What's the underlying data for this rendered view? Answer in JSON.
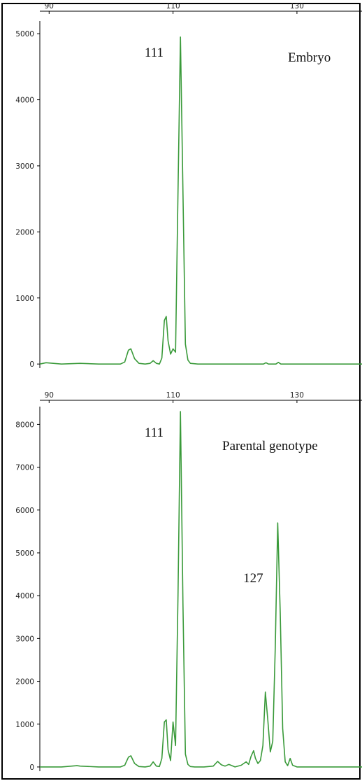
{
  "chart_data": [
    {
      "type": "line",
      "title": "",
      "annotation": "Embryo",
      "peak_labels": [
        {
          "text": "111",
          "x": 111,
          "y": 4950
        }
      ],
      "x_ticks": [
        90,
        110,
        130
      ],
      "y_ticks": [
        0,
        1000,
        2000,
        3000,
        4000,
        5000
      ],
      "xlim": [
        88.5,
        140.5
      ],
      "ylim": [
        -30,
        5150
      ],
      "grid": false,
      "line_color": "#3a9a3a",
      "series": [
        {
          "x": [
            88.5,
            89.5,
            92,
            95,
            98,
            101.5,
            102.2,
            102.8,
            103.2,
            103.8,
            104.5,
            105.5,
            106.3,
            106.8,
            107.3,
            107.8,
            108.2,
            108.6,
            108.9,
            109.2,
            109.6,
            110.0,
            110.4,
            110.8,
            111.2,
            111.6,
            112.0,
            112.4,
            112.8,
            114,
            118,
            122,
            124.6,
            125,
            125.4,
            126.6,
            127,
            127.4,
            130,
            135,
            140.5
          ],
          "y": [
            0,
            20,
            0,
            10,
            0,
            0,
            30,
            210,
            230,
            80,
            10,
            0,
            10,
            50,
            10,
            0,
            90,
            660,
            720,
            350,
            150,
            230,
            180,
            2600,
            4950,
            2600,
            300,
            60,
            10,
            0,
            0,
            0,
            0,
            20,
            0,
            0,
            25,
            0,
            0,
            0,
            0
          ]
        }
      ]
    },
    {
      "type": "line",
      "title": "",
      "annotation": "Parental genotype",
      "peak_labels": [
        {
          "text": "111",
          "x": 111,
          "y": 8300
        },
        {
          "text": "127",
          "x": 127,
          "y": 5700
        }
      ],
      "x_ticks": [
        90,
        110,
        130
      ],
      "y_ticks": [
        0,
        1000,
        2000,
        3000,
        4000,
        5000,
        6000,
        7000,
        8000
      ],
      "xlim": [
        88.5,
        140.5
      ],
      "ylim": [
        -50,
        8350
      ],
      "grid": false,
      "line_color": "#3a9a3a",
      "series": [
        {
          "x": [
            88.5,
            92,
            94.5,
            95,
            98,
            101.5,
            102.2,
            102.8,
            103.2,
            103.8,
            104.5,
            105.5,
            106.3,
            106.8,
            107.3,
            107.8,
            108.2,
            108.6,
            108.9,
            109.2,
            109.6,
            110.0,
            110.4,
            110.8,
            111.2,
            111.6,
            112.0,
            112.4,
            112.8,
            113.5,
            115,
            116.5,
            117.2,
            117.8,
            118.4,
            119,
            120,
            121,
            121.8,
            122.2,
            122.6,
            123.0,
            123.3,
            123.7,
            124.1,
            124.5,
            124.9,
            125.3,
            125.7,
            126.1,
            126.5,
            126.9,
            127.3,
            127.7,
            128.1,
            128.5,
            128.9,
            129.3,
            130,
            135,
            140.5
          ],
          "y": [
            0,
            0,
            30,
            20,
            0,
            0,
            40,
            230,
            260,
            80,
            10,
            0,
            20,
            120,
            20,
            10,
            200,
            1050,
            1100,
            400,
            150,
            1050,
            500,
            4000,
            8300,
            3800,
            300,
            60,
            10,
            0,
            0,
            20,
            130,
            50,
            20,
            60,
            0,
            40,
            120,
            60,
            250,
            380,
            200,
            80,
            150,
            500,
            1750,
            1100,
            350,
            600,
            2800,
            5700,
            3600,
            900,
            120,
            30,
            200,
            40,
            0,
            0,
            0
          ]
        }
      ]
    }
  ]
}
